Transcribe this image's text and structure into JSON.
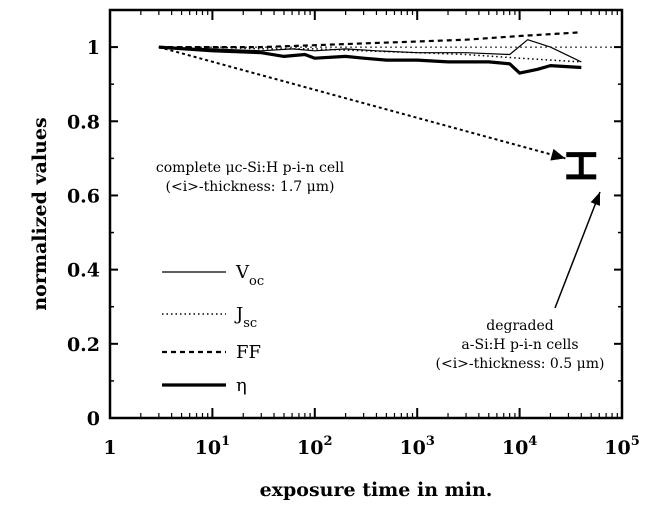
{
  "chart_data": {
    "type": "line",
    "title": "",
    "xlabel": "exposure time in min.",
    "ylabel": "normalized values",
    "xscale": "log",
    "xlim": [
      1,
      100000
    ],
    "ylim": [
      0,
      1.1
    ],
    "x_ticks": [
      {
        "value": 1,
        "base": "1",
        "exp": ""
      },
      {
        "value": 10,
        "base": "10",
        "exp": "1"
      },
      {
        "value": 100,
        "base": "10",
        "exp": "2"
      },
      {
        "value": 1000,
        "base": "10",
        "exp": "3"
      },
      {
        "value": 10000,
        "base": "10",
        "exp": "4"
      },
      {
        "value": 100000,
        "base": "10",
        "exp": "5"
      }
    ],
    "y_ticks": [
      {
        "value": 0,
        "label": "0"
      },
      {
        "value": 0.2,
        "label": "0.2"
      },
      {
        "value": 0.4,
        "label": "0.4"
      },
      {
        "value": 0.6,
        "label": "0.6"
      },
      {
        "value": 0.8,
        "label": "0.8"
      },
      {
        "value": 1,
        "label": "1"
      }
    ],
    "grid": false,
    "reference_line": {
      "y": 1
    },
    "series": [
      {
        "name": "V",
        "sub": "oc",
        "style": "solid-thin",
        "x": [
          3,
          10,
          30,
          60,
          100,
          200,
          400,
          1000,
          3000,
          8000,
          12000,
          20000,
          40000
        ],
        "y": [
          1.0,
          0.995,
          0.99,
          0.995,
          0.99,
          0.995,
          0.99,
          0.985,
          0.985,
          0.98,
          1.02,
          1.0,
          0.96
        ]
      },
      {
        "name": "J",
        "sub": "sc",
        "style": "dotted",
        "x": [
          3,
          10,
          30,
          100,
          300,
          1000,
          3000,
          10000,
          40000
        ],
        "y": [
          1.0,
          1.0,
          0.995,
          0.995,
          0.99,
          0.985,
          0.98,
          0.97,
          0.96
        ]
      },
      {
        "name": "FF",
        "sub": "",
        "style": "dashed",
        "x": [
          3,
          10,
          30,
          100,
          300,
          1000,
          3000,
          10000,
          40000
        ],
        "y": [
          1.0,
          1.0,
          1.0,
          1.005,
          1.01,
          1.015,
          1.02,
          1.03,
          1.04
        ]
      },
      {
        "name": "η",
        "sub": "",
        "style": "solid-thick",
        "x": [
          3,
          10,
          30,
          50,
          80,
          100,
          200,
          300,
          500,
          1000,
          2000,
          5000,
          8000,
          10000,
          15000,
          20000,
          40000
        ],
        "y": [
          1.0,
          0.99,
          0.985,
          0.975,
          0.98,
          0.97,
          0.975,
          0.97,
          0.965,
          0.965,
          0.96,
          0.96,
          0.955,
          0.93,
          0.94,
          0.95,
          0.945
        ]
      }
    ],
    "trend_arrow": {
      "from": {
        "x": 3,
        "y": 1.0
      },
      "to": {
        "x": 28000,
        "y": 0.7
      }
    },
    "error_bar": {
      "x": 40000,
      "low": 0.65,
      "high": 0.71
    },
    "annotations": [
      {
        "id": "complete",
        "lines": [
          "complete μc-Si:H p-i-n cell",
          "(<i>-thickness: 1.7 μm)"
        ]
      },
      {
        "id": "degraded",
        "lines": [
          "degraded",
          "a-Si:H p-i-n cells",
          "(<i>-thickness: 0.5 μm)"
        ]
      }
    ]
  }
}
